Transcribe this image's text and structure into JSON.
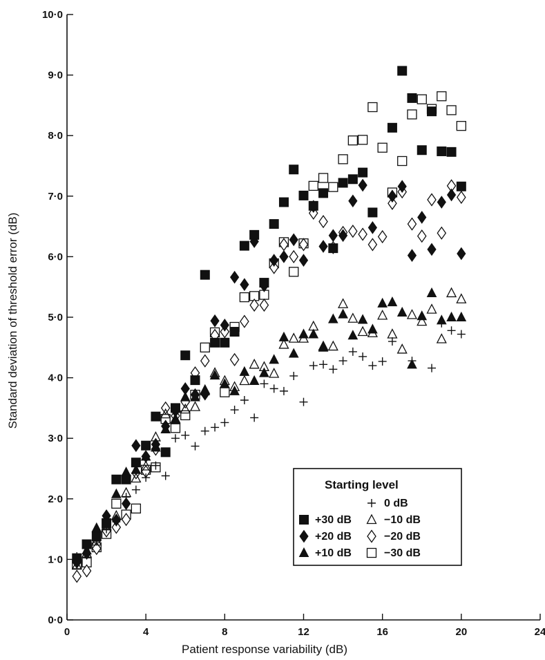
{
  "chart_data": {
    "type": "scatter",
    "title": "",
    "xlabel": "Patient response variability (dB)",
    "ylabel": "Standard deviation of threshold error (dB)",
    "xlim": [
      0,
      24
    ],
    "ylim": [
      0,
      10
    ],
    "grid": false,
    "legend_placement": "bottom-right",
    "legend_title": "Starting level",
    "x_ticks": [
      0,
      4,
      8,
      12,
      16,
      20,
      24
    ],
    "x_tick_labels": [
      "0",
      "4",
      "8",
      "12",
      "16",
      "20",
      "24"
    ],
    "y_ticks": [
      0,
      1,
      2,
      3,
      4,
      5,
      6,
      7,
      8,
      9,
      10
    ],
    "y_tick_labels": [
      "0·0",
      "1·0",
      "2·0",
      "3·0",
      "4·0",
      "5·0",
      "6·0",
      "7·0",
      "8·0",
      "9·0",
      "10·0"
    ],
    "series": [
      {
        "name": "+30 dB",
        "marker": "filled-square",
        "points": [
          [
            0.5,
            1.02
          ],
          [
            1.0,
            1.25
          ],
          [
            1.5,
            1.38
          ],
          [
            2.0,
            1.6
          ],
          [
            2.5,
            2.32
          ],
          [
            3.0,
            2.32
          ],
          [
            3.5,
            2.6
          ],
          [
            4.0,
            2.88
          ],
          [
            4.5,
            3.36
          ],
          [
            5.0,
            2.77
          ],
          [
            5.5,
            3.5
          ],
          [
            6.0,
            4.37
          ],
          [
            6.5,
            3.96
          ],
          [
            7.0,
            5.7
          ],
          [
            7.5,
            4.58
          ],
          [
            8.0,
            4.58
          ],
          [
            8.5,
            4.76
          ],
          [
            9.0,
            6.18
          ],
          [
            9.5,
            6.36
          ],
          [
            10.0,
            5.57
          ],
          [
            10.5,
            6.54
          ],
          [
            11.0,
            6.9
          ],
          [
            11.5,
            7.44
          ],
          [
            12.0,
            7.01
          ],
          [
            12.5,
            6.84
          ],
          [
            13.0,
            7.05
          ],
          [
            13.5,
            6.14
          ],
          [
            14.0,
            7.22
          ],
          [
            14.5,
            7.28
          ],
          [
            15.0,
            7.39
          ],
          [
            15.5,
            6.73
          ],
          [
            16.5,
            8.13
          ],
          [
            17.0,
            9.07
          ],
          [
            17.5,
            8.62
          ],
          [
            18.0,
            7.76
          ],
          [
            18.5,
            8.4
          ],
          [
            19.0,
            7.74
          ],
          [
            19.5,
            7.73
          ],
          [
            20.0,
            7.16
          ]
        ]
      },
      {
        "name": "+20 dB",
        "marker": "filled-diamond",
        "points": [
          [
            0.5,
            0.95
          ],
          [
            1.0,
            1.1
          ],
          [
            1.5,
            1.43
          ],
          [
            2.0,
            1.72
          ],
          [
            2.5,
            1.65
          ],
          [
            3.0,
            1.92
          ],
          [
            3.5,
            2.88
          ],
          [
            4.0,
            2.7
          ],
          [
            4.5,
            2.9
          ],
          [
            5.0,
            3.2
          ],
          [
            5.5,
            3.45
          ],
          [
            6.0,
            3.82
          ],
          [
            6.5,
            3.72
          ],
          [
            7.0,
            3.73
          ],
          [
            7.5,
            4.94
          ],
          [
            8.0,
            4.87
          ],
          [
            8.5,
            5.66
          ],
          [
            9.0,
            5.54
          ],
          [
            9.5,
            6.25
          ],
          [
            10.0,
            5.52
          ],
          [
            10.5,
            5.94
          ],
          [
            11.0,
            6.0
          ],
          [
            11.5,
            6.28
          ],
          [
            12.0,
            5.94
          ],
          [
            12.5,
            6.83
          ],
          [
            13.0,
            6.17
          ],
          [
            13.5,
            6.35
          ],
          [
            14.0,
            6.35
          ],
          [
            14.5,
            6.92
          ],
          [
            15.0,
            7.18
          ],
          [
            15.5,
            6.48
          ],
          [
            16.5,
            7.0
          ],
          [
            17.0,
            7.16
          ],
          [
            17.5,
            6.02
          ],
          [
            18.0,
            6.65
          ],
          [
            18.5,
            6.12
          ],
          [
            19.0,
            6.9
          ],
          [
            19.5,
            7.02
          ],
          [
            20.0,
            6.05
          ]
        ]
      },
      {
        "name": "+10 dB",
        "marker": "filled-triangle",
        "points": [
          [
            0.5,
            1.0
          ],
          [
            1.0,
            1.15
          ],
          [
            1.5,
            1.52
          ],
          [
            2.0,
            1.58
          ],
          [
            2.5,
            2.08
          ],
          [
            3.0,
            2.44
          ],
          [
            3.5,
            2.48
          ],
          [
            4.0,
            2.7
          ],
          [
            4.5,
            2.85
          ],
          [
            5.0,
            3.15
          ],
          [
            5.5,
            3.3
          ],
          [
            6.0,
            3.68
          ],
          [
            6.5,
            3.68
          ],
          [
            7.0,
            3.78
          ],
          [
            7.5,
            4.04
          ],
          [
            8.0,
            3.9
          ],
          [
            8.5,
            3.78
          ],
          [
            9.0,
            4.1
          ],
          [
            9.5,
            3.95
          ],
          [
            10.0,
            4.08
          ],
          [
            10.5,
            4.3
          ],
          [
            11.0,
            4.67
          ],
          [
            11.5,
            4.4
          ],
          [
            12.0,
            4.72
          ],
          [
            12.5,
            4.72
          ],
          [
            13.0,
            4.5
          ],
          [
            13.5,
            4.97
          ],
          [
            14.0,
            5.05
          ],
          [
            14.5,
            4.7
          ],
          [
            15.0,
            4.96
          ],
          [
            15.5,
            4.8
          ],
          [
            16.0,
            5.23
          ],
          [
            16.5,
            5.25
          ],
          [
            17.0,
            5.08
          ],
          [
            17.5,
            4.22
          ],
          [
            18.0,
            5.02
          ],
          [
            18.5,
            5.4
          ],
          [
            19.0,
            4.95
          ],
          [
            19.5,
            5.0
          ],
          [
            20.0,
            5.0
          ]
        ]
      },
      {
        "name": "0 dB",
        "marker": "plus",
        "points": [
          [
            0.5,
            1.05
          ],
          [
            1.0,
            1.1
          ],
          [
            1.5,
            1.3
          ],
          [
            2.0,
            1.5
          ],
          [
            2.5,
            1.62
          ],
          [
            3.0,
            2.03
          ],
          [
            3.5,
            2.15
          ],
          [
            4.0,
            2.35
          ],
          [
            4.5,
            2.55
          ],
          [
            5.0,
            2.38
          ],
          [
            5.5,
            3.0
          ],
          [
            6.0,
            3.05
          ],
          [
            6.5,
            2.87
          ],
          [
            7.0,
            3.12
          ],
          [
            7.5,
            3.18
          ],
          [
            8.0,
            3.26
          ],
          [
            8.5,
            3.47
          ],
          [
            9.0,
            3.63
          ],
          [
            9.5,
            3.34
          ],
          [
            10.0,
            3.9
          ],
          [
            10.5,
            3.82
          ],
          [
            11.0,
            3.78
          ],
          [
            11.5,
            4.03
          ],
          [
            12.0,
            3.6
          ],
          [
            12.5,
            4.2
          ],
          [
            13.0,
            4.22
          ],
          [
            13.5,
            4.14
          ],
          [
            14.0,
            4.28
          ],
          [
            14.5,
            4.43
          ],
          [
            15.0,
            4.35
          ],
          [
            15.5,
            4.2
          ],
          [
            16.0,
            4.27
          ],
          [
            16.5,
            4.6
          ],
          [
            17.5,
            4.28
          ],
          [
            18.5,
            4.16
          ],
          [
            19.0,
            4.9
          ],
          [
            19.5,
            4.78
          ],
          [
            20.0,
            4.72
          ]
        ]
      },
      {
        "name": "−10 dB",
        "marker": "open-triangle",
        "points": [
          [
            0.5,
            0.9
          ],
          [
            1.0,
            1.1
          ],
          [
            1.5,
            1.3
          ],
          [
            2.0,
            1.55
          ],
          [
            2.5,
            1.72
          ],
          [
            3.0,
            2.1
          ],
          [
            3.5,
            2.34
          ],
          [
            4.0,
            2.54
          ],
          [
            4.5,
            3.02
          ],
          [
            5.0,
            3.4
          ],
          [
            5.5,
            3.32
          ],
          [
            6.0,
            3.48
          ],
          [
            6.5,
            3.52
          ],
          [
            7.0,
            3.8
          ],
          [
            7.5,
            4.08
          ],
          [
            8.0,
            3.95
          ],
          [
            8.5,
            3.85
          ],
          [
            9.0,
            3.95
          ],
          [
            9.5,
            4.22
          ],
          [
            10.0,
            4.18
          ],
          [
            10.5,
            4.07
          ],
          [
            11.0,
            4.55
          ],
          [
            11.5,
            4.65
          ],
          [
            12.0,
            4.65
          ],
          [
            12.5,
            4.85
          ],
          [
            13.0,
            4.52
          ],
          [
            13.5,
            4.52
          ],
          [
            14.0,
            5.22
          ],
          [
            14.5,
            4.98
          ],
          [
            15.0,
            4.76
          ],
          [
            15.5,
            4.74
          ],
          [
            16.0,
            5.03
          ],
          [
            16.5,
            4.72
          ],
          [
            17.0,
            4.47
          ],
          [
            17.5,
            5.04
          ],
          [
            18.0,
            4.93
          ],
          [
            18.5,
            5.13
          ],
          [
            19.0,
            4.64
          ],
          [
            19.5,
            5.4
          ],
          [
            20.0,
            5.3
          ]
        ]
      },
      {
        "name": "−20 dB",
        "marker": "open-diamond",
        "points": [
          [
            0.5,
            0.72
          ],
          [
            1.0,
            0.81
          ],
          [
            1.5,
            1.18
          ],
          [
            2.0,
            1.47
          ],
          [
            2.5,
            1.53
          ],
          [
            3.0,
            1.66
          ],
          [
            3.5,
            2.43
          ],
          [
            4.0,
            2.45
          ],
          [
            4.5,
            2.82
          ],
          [
            5.0,
            3.5
          ],
          [
            5.5,
            3.37
          ],
          [
            6.0,
            3.6
          ],
          [
            6.5,
            4.08
          ],
          [
            7.0,
            4.28
          ],
          [
            7.5,
            4.7
          ],
          [
            8.0,
            4.76
          ],
          [
            8.5,
            4.3
          ],
          [
            9.0,
            4.93
          ],
          [
            9.5,
            5.2
          ],
          [
            10.0,
            5.2
          ],
          [
            10.5,
            5.82
          ],
          [
            11.0,
            6.2
          ],
          [
            11.5,
            6.0
          ],
          [
            12.0,
            6.2
          ],
          [
            12.5,
            6.72
          ],
          [
            13.0,
            6.58
          ],
          [
            13.5,
            6.15
          ],
          [
            14.0,
            6.4
          ],
          [
            14.5,
            6.42
          ],
          [
            15.0,
            6.37
          ],
          [
            15.5,
            6.2
          ],
          [
            16.0,
            6.33
          ],
          [
            16.5,
            6.88
          ],
          [
            17.0,
            7.07
          ],
          [
            17.5,
            6.54
          ],
          [
            18.0,
            6.34
          ],
          [
            18.5,
            6.94
          ],
          [
            19.0,
            6.39
          ],
          [
            19.5,
            7.17
          ],
          [
            20.0,
            6.98
          ]
        ]
      },
      {
        "name": "−30 dB",
        "marker": "open-square",
        "points": [
          [
            0.5,
            0.92
          ],
          [
            1.0,
            0.95
          ],
          [
            1.5,
            1.2
          ],
          [
            2.0,
            1.42
          ],
          [
            2.5,
            1.92
          ],
          [
            3.0,
            1.74
          ],
          [
            3.5,
            1.84
          ],
          [
            4.0,
            2.48
          ],
          [
            4.5,
            2.52
          ],
          [
            5.0,
            3.32
          ],
          [
            5.5,
            3.17
          ],
          [
            6.0,
            3.38
          ],
          [
            6.5,
            3.72
          ],
          [
            7.0,
            4.5
          ],
          [
            7.5,
            4.75
          ],
          [
            8.0,
            3.76
          ],
          [
            8.5,
            4.84
          ],
          [
            9.0,
            5.33
          ],
          [
            9.5,
            5.35
          ],
          [
            10.0,
            5.37
          ],
          [
            10.5,
            5.89
          ],
          [
            11.0,
            6.24
          ],
          [
            11.5,
            5.75
          ],
          [
            12.0,
            6.22
          ],
          [
            12.5,
            7.17
          ],
          [
            13.0,
            7.3
          ],
          [
            13.5,
            7.15
          ],
          [
            14.0,
            7.61
          ],
          [
            14.5,
            7.92
          ],
          [
            15.0,
            7.93
          ],
          [
            15.5,
            8.47
          ],
          [
            16.0,
            7.8
          ],
          [
            16.5,
            7.06
          ],
          [
            17.0,
            7.58
          ],
          [
            17.5,
            8.35
          ],
          [
            18.0,
            8.6
          ],
          [
            18.5,
            8.44
          ],
          [
            19.0,
            8.65
          ],
          [
            19.5,
            8.42
          ],
          [
            20.0,
            8.16
          ]
        ]
      }
    ]
  }
}
